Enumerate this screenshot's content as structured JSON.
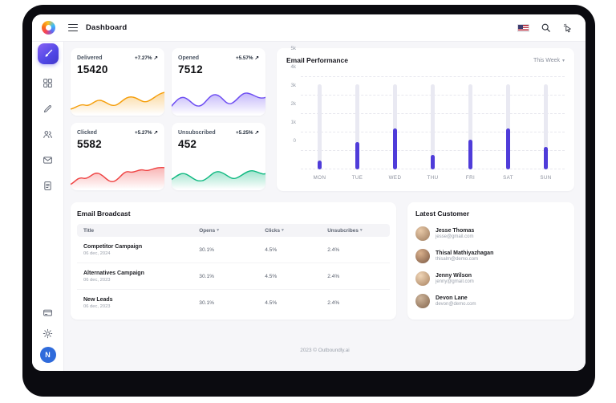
{
  "header": {
    "title": "Dashboard"
  },
  "sidebar": {
    "avatar_initial": "N"
  },
  "icons": {
    "trend_arrow": "↗",
    "sort_caret": "▾",
    "dropdown_caret": "▾"
  },
  "colors": {
    "accent": "#4f3cd9",
    "bar_track": "#e9e9f2",
    "sidebar_active_gradient": [
      "#8a63f4",
      "#4338ca"
    ],
    "avatar_bg": "#2f6bdb"
  },
  "stats": [
    {
      "label": "Delivered",
      "delta": "+7.27%",
      "value": "15420",
      "color": "#f59e0b"
    },
    {
      "label": "Opened",
      "delta": "+5.57%",
      "value": "7512",
      "color": "#6d4df2"
    },
    {
      "label": "Clicked",
      "delta": "+5.27%",
      "value": "5582",
      "color": "#ef4444"
    },
    {
      "label": "Unsubscribed",
      "delta": "+5.25%",
      "value": "452",
      "color": "#10b981"
    }
  ],
  "chart_data": {
    "type": "bar",
    "title": "Email Performance",
    "period_selector": "This Week",
    "categories": [
      "MON",
      "TUE",
      "WED",
      "THU",
      "FRI",
      "SAT",
      "SUN"
    ],
    "values": [
      500,
      1500,
      2200,
      800,
      1600,
      2200,
      1200
    ],
    "track_values": [
      4600,
      4600,
      4600,
      4600,
      4600,
      4600,
      4600
    ],
    "yticks": [
      "5k",
      "4k",
      "3k",
      "2k",
      "1k",
      "0"
    ],
    "ylim": [
      0,
      5000
    ],
    "grid": "dashed-horizontal",
    "legend": "none",
    "bar_color": "#4f3cd9",
    "track_color": "#e9e9f2"
  },
  "broadcast": {
    "title": "Email Broadcast",
    "columns": [
      "Title",
      "Opens",
      "Clicks",
      "Unsubcribes"
    ],
    "rows": [
      {
        "title": "Competitor Campaign",
        "date": "06 dec, 2024",
        "opens": "30.1%",
        "clicks": "4.5%",
        "unsub": "2.4%"
      },
      {
        "title": "Alternatives Campaign",
        "date": "06 dec, 2023",
        "opens": "30.1%",
        "clicks": "4.5%",
        "unsub": "2.4%"
      },
      {
        "title": "New Leads",
        "date": "06 dec, 2023",
        "opens": "30.1%",
        "clicks": "4.5%",
        "unsub": "2.4%"
      }
    ]
  },
  "customers": {
    "title": "Latest Customer",
    "items": [
      {
        "name": "Jesse Thomas",
        "email": "jesse@gmail.com"
      },
      {
        "name": "Thisal Mathiyazhagan",
        "email": "thisalm@demo.com"
      },
      {
        "name": "Jenny Wilson",
        "email": "jenny@gmail.com"
      },
      {
        "name": "Devon Lane",
        "email": "devon@demo.com"
      }
    ]
  },
  "footer": {
    "text": "2023 © Outboundly.ai"
  }
}
